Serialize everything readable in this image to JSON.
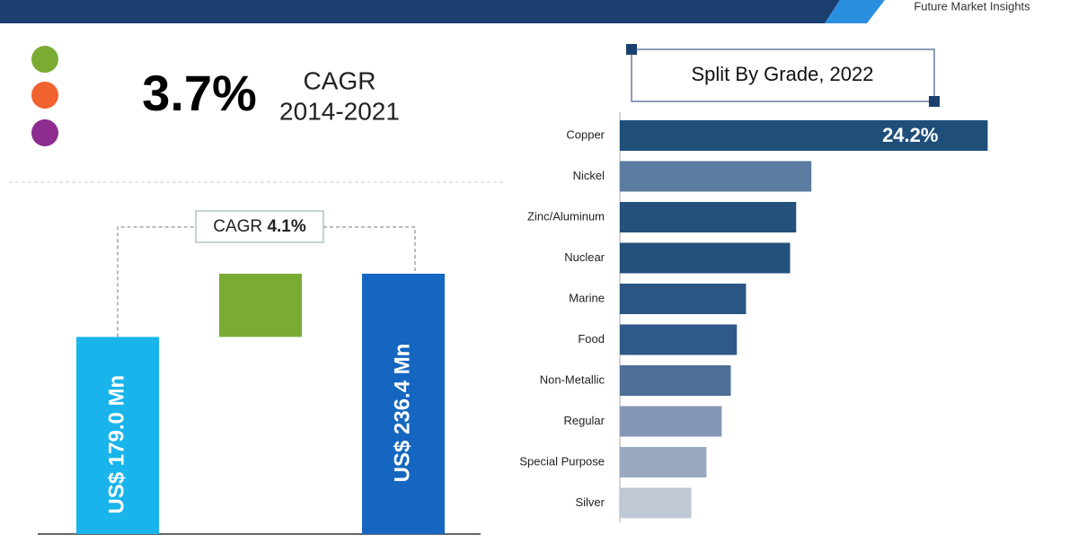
{
  "header": {
    "brand": "Future Market Insights"
  },
  "headline": {
    "value_label": "3.7%",
    "label": "CAGR",
    "period": "2014-2021"
  },
  "chart_data": [
    {
      "type": "waterfall",
      "annotation": {
        "label": "CAGR",
        "value_label": "4.1%"
      },
      "values": [
        179.0,
        57.4,
        236.4
      ],
      "value_labels": [
        "US$ 179.0 Mn",
        null,
        "US$ 236.4 Mn"
      ],
      "kinds": [
        "total",
        "increase",
        "total"
      ],
      "colors": [
        "#19b4ec",
        "#7aac34",
        "#1566c0"
      ],
      "ylim": [
        0,
        260
      ]
    },
    {
      "type": "hbar",
      "title": "Split By Grade, 2022",
      "categories": [
        "Copper",
        "Nickel",
        "Zinc/Aluminum",
        "Nuclear",
        "Marine",
        "Food",
        "Non-Metallic",
        "Regular",
        "Special Purpose",
        "Silver"
      ],
      "values": [
        24.2,
        12.6,
        11.6,
        11.2,
        8.3,
        7.7,
        7.3,
        6.7,
        5.7,
        4.7
      ],
      "value_labels": [
        "24.2%",
        null,
        null,
        null,
        null,
        null,
        null,
        null,
        null,
        null
      ],
      "colors": [
        "#1f4e79",
        "#5b7ba0",
        "#24507c",
        "#24507c",
        "#2a5684",
        "#2f5a88",
        "#4e6f96",
        "#8496b5",
        "#9aa9c2",
        "#c0c8d6"
      ],
      "xlim": [
        0,
        25
      ]
    }
  ]
}
